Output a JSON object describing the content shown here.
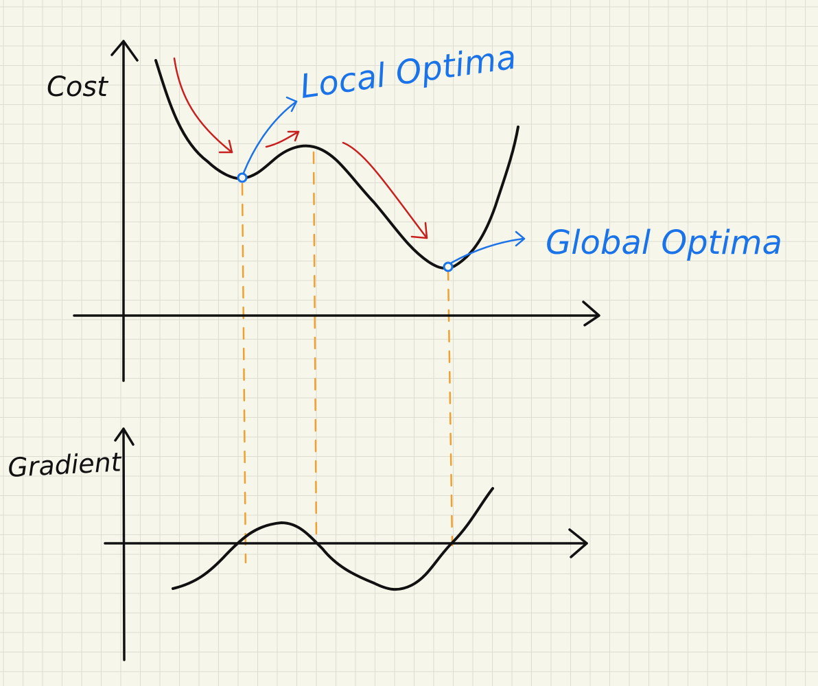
{
  "colors": {
    "paper": "#f7f6ea",
    "grid": "#dcdcd2",
    "ink": "#111111",
    "annotation": "#1a73e8",
    "arrow": "#c8201e",
    "guide": "#f0a030"
  },
  "labels": {
    "cost_axis": "Cost",
    "gradient_axis": "Gradient",
    "local_optima": "Local Optima",
    "global_optima": "Global Optima"
  }
}
